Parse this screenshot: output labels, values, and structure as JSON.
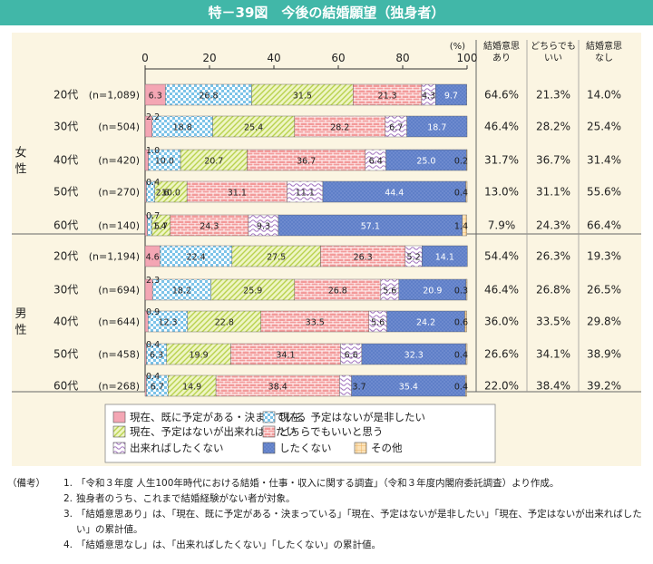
{
  "title": "特－39図　今後の結婚願望（独身者）",
  "chart_data": {
    "type": "bar",
    "orientation": "horizontal",
    "stacked": true,
    "xlim": [
      0,
      100
    ],
    "ticks": [
      0,
      20,
      40,
      60,
      80,
      100
    ],
    "unit_label": "(%)",
    "groups": [
      {
        "label": "女性",
        "label_chars": [
          "女",
          "性"
        ]
      },
      {
        "label": "男性",
        "label_chars": [
          "男",
          "性"
        ]
      }
    ],
    "rows": [
      {
        "group": 0,
        "age": "20代",
        "n": "(n=1,089)",
        "values": [
          6.3,
          26.8,
          31.5,
          21.3,
          4.3,
          9.7,
          0
        ],
        "labels": [
          "6.3",
          "26.8",
          "31.5",
          "21.3",
          "4.3",
          "9.7",
          ""
        ],
        "summary": [
          "64.6%",
          "21.3%",
          "14.0%"
        ]
      },
      {
        "group": 0,
        "age": "30代",
        "n": "(n=504)",
        "values": [
          2.2,
          18.8,
          25.4,
          28.2,
          6.7,
          18.7,
          0
        ],
        "labels": [
          "2.2",
          "18.8",
          "25.4",
          "28.2",
          "6.7",
          "18.7",
          ""
        ],
        "summary": [
          "46.4%",
          "28.2%",
          "25.4%"
        ]
      },
      {
        "group": 0,
        "age": "40代",
        "n": "(n=420)",
        "values": [
          1.0,
          10.0,
          20.7,
          36.7,
          6.4,
          25.0,
          0.2
        ],
        "labels": [
          "1.0",
          "10.0",
          "20.7",
          "36.7",
          "6.4",
          "25.0",
          "0.2"
        ],
        "summary": [
          "31.7%",
          "36.7%",
          "31.4%"
        ]
      },
      {
        "group": 0,
        "age": "50代",
        "n": "(n=270)",
        "values": [
          0.4,
          2.6,
          10.0,
          31.1,
          11.1,
          44.4,
          0.4
        ],
        "labels": [
          "0.4",
          "2.6",
          "10.0",
          "31.1",
          "11.1",
          "44.4",
          "0.4"
        ],
        "summary": [
          "13.0%",
          "31.1%",
          "55.6%"
        ]
      },
      {
        "group": 0,
        "age": "60代",
        "n": "(n=140)",
        "values": [
          0.7,
          1.4,
          5.7,
          24.3,
          9.3,
          57.1,
          1.4
        ],
        "labels": [
          "0.7",
          "1.4",
          "5.7",
          "24.3",
          "9.3",
          "57.1",
          "1.4"
        ],
        "summary": [
          "7.9%",
          "24.3%",
          "66.4%"
        ]
      },
      {
        "group": 1,
        "age": "20代",
        "n": "(n=1,194)",
        "values": [
          4.6,
          22.4,
          27.5,
          26.3,
          5.2,
          14.1,
          0
        ],
        "labels": [
          "4.6",
          "22.4",
          "27.5",
          "26.3",
          "5.2",
          "14.1",
          ""
        ],
        "summary": [
          "54.4%",
          "26.3%",
          "19.3%"
        ]
      },
      {
        "group": 1,
        "age": "30代",
        "n": "(n=694)",
        "values": [
          2.3,
          18.2,
          25.9,
          26.8,
          5.6,
          20.9,
          0.3
        ],
        "labels": [
          "2.3",
          "18.2",
          "25.9",
          "26.8",
          "5.6",
          "20.9",
          "0.3"
        ],
        "summary": [
          "46.4%",
          "26.8%",
          "26.5%"
        ]
      },
      {
        "group": 1,
        "age": "40代",
        "n": "(n=644)",
        "values": [
          0.9,
          12.3,
          22.8,
          33.5,
          5.6,
          24.2,
          0.6
        ],
        "labels": [
          "0.9",
          "12.3",
          "22.8",
          "33.5",
          "5.6",
          "24.2",
          "0.6"
        ],
        "summary": [
          "36.0%",
          "33.5%",
          "29.8%"
        ]
      },
      {
        "group": 1,
        "age": "50代",
        "n": "(n=458)",
        "values": [
          0.4,
          6.3,
          19.9,
          34.1,
          6.6,
          32.3,
          0.4
        ],
        "labels": [
          "0.4",
          "6.3",
          "19.9",
          "34.1",
          "6.6",
          "32.3",
          "0.4"
        ],
        "summary": [
          "26.6%",
          "34.1%",
          "38.9%"
        ]
      },
      {
        "group": 1,
        "age": "60代",
        "n": "(n=268)",
        "values": [
          0.4,
          6.7,
          14.9,
          38.4,
          3.7,
          35.4,
          0.4
        ],
        "labels": [
          "0.4",
          "6.7",
          "14.9",
          "38.4",
          "3.7",
          "35.4",
          "0.4"
        ],
        "summary": [
          "22.0%",
          "38.4%",
          "39.2%"
        ]
      }
    ],
    "series": [
      {
        "name": "現在、既に予定がある・決まっている",
        "color": "#f4a6b4",
        "pattern": "solid"
      },
      {
        "name": "現在、予定はないが是非したい",
        "color": "#9fd4ee",
        "pattern": "checker"
      },
      {
        "name": "現在、予定はないが出来ればしたい",
        "color": "#d6e88a",
        "pattern": "diagonal"
      },
      {
        "name": "どちらでもいいと思う",
        "color": "#f08c8c",
        "pattern": "brick"
      },
      {
        "name": "出来ればしたくない",
        "color": "#c9a6da",
        "pattern": "wave"
      },
      {
        "name": "したくない",
        "color": "#5f7fc8",
        "pattern": "dots"
      },
      {
        "name": "その他",
        "color": "#f6c98a",
        "pattern": "grid"
      }
    ],
    "summary_headers": [
      [
        "結婚意思",
        "あり"
      ],
      [
        "どちらでも",
        "いい"
      ],
      [
        "結婚意思",
        "なし"
      ]
    ],
    "legend_position": "bottom"
  },
  "notes": {
    "head": "（備考）",
    "items": [
      {
        "num": "1.",
        "text": "「令和３年度 人生100年時代における結婚・仕事・収入に関する調査」（令和３年度内閣府委託調査）より作成。"
      },
      {
        "num": "2.",
        "text": "独身者のうち、これまで結婚経験がない者が対象。"
      },
      {
        "num": "3.",
        "text": "「結婚意思あり」は、「現在、既に予定がある・決まっている」「現在、予定はないが是非したい」「現在、予定はないが出来ればしたい」の累計値。"
      },
      {
        "num": "4.",
        "text": "「結婚意思なし」は、「出来ればしたくない」「したくない」の累計値。"
      }
    ]
  }
}
